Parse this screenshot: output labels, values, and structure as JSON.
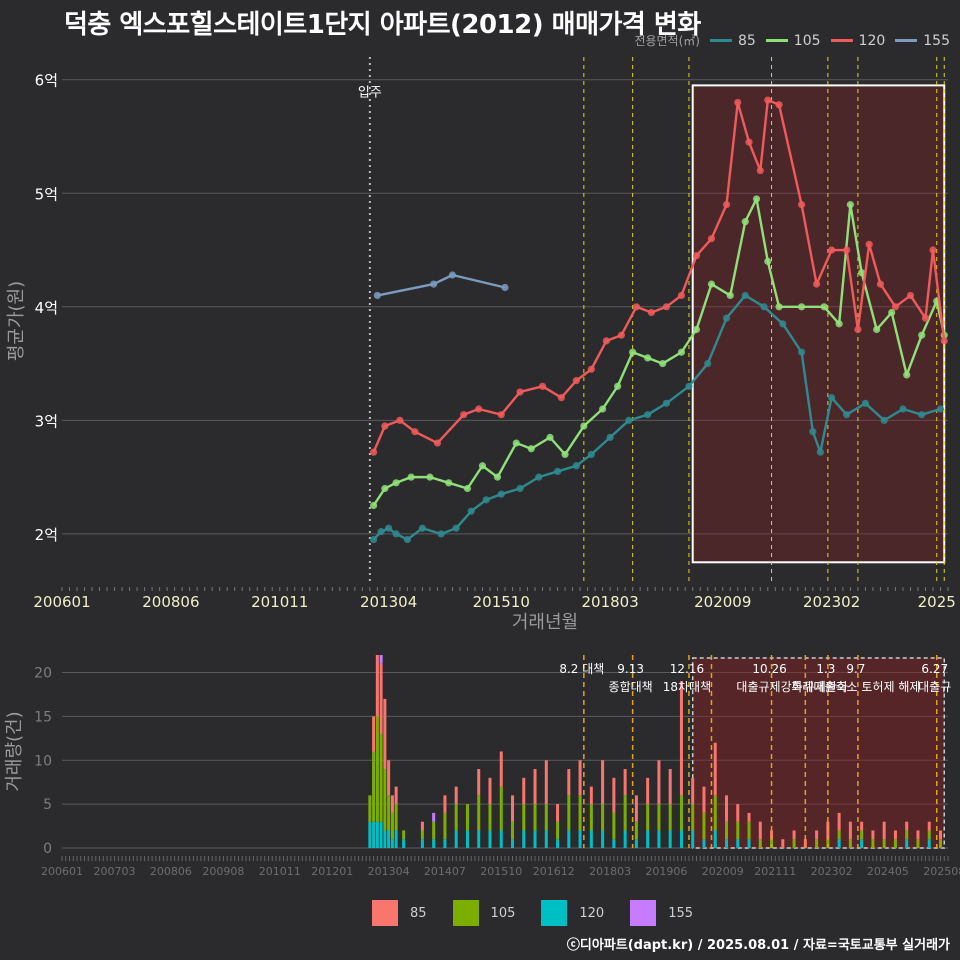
{
  "title": "덕충 엑스포힐스테이트1단지 아파트(2012) 매매가격 변화",
  "footer": "ⓒ디아파트(dapt.kr) / 2025.08.01 / 자료=국토교통부 실거래가",
  "legend_top": {
    "title": "전용면적(㎡)",
    "items": [
      {
        "label": "85",
        "color": "#2f8a8f"
      },
      {
        "label": "105",
        "color": "#90e07a"
      },
      {
        "label": "120",
        "color": "#f05a5a"
      },
      {
        "label": "155",
        "color": "#7b9cc0"
      }
    ]
  },
  "legend_bottom": {
    "items": [
      {
        "label": "85",
        "color": "#f8766d"
      },
      {
        "label": "105",
        "color": "#7cae00"
      },
      {
        "label": "120",
        "color": "#00bfc4"
      },
      {
        "label": "155",
        "color": "#c77cff"
      }
    ]
  },
  "chart_data": [
    {
      "type": "line",
      "xlabel": "거래년월",
      "ylabel": "평균가(원)",
      "ylim": [
        1.55,
        6.2
      ],
      "yticks": [
        2,
        3,
        4,
        5,
        6
      ],
      "ytick_labels": [
        "2억",
        "3억",
        "4억",
        "5억",
        "6억"
      ],
      "xtick_labels": [
        "200601",
        "200806",
        "201011",
        "201304",
        "201510",
        "201803",
        "202009",
        "202302",
        "2025"
      ],
      "xlim": [
        "2006-01",
        "2025-09"
      ],
      "move_in": {
        "date": "2012-11",
        "label": "입주"
      },
      "highlight_box": {
        "from": "2020-01",
        "to": "2025-08"
      },
      "policy_lines": [
        "2017-08",
        "2018-09",
        "2019-12",
        "2021-10",
        "2023-01",
        "2023-09",
        "2025-06",
        "2025-08"
      ],
      "series": [
        {
          "name": "85",
          "color": "#2f8a8f",
          "points": [
            [
              "2012-12",
              1.95
            ],
            [
              "2013-02",
              2.02
            ],
            [
              "2013-04",
              2.05
            ],
            [
              "2013-06",
              2.0
            ],
            [
              "2013-09",
              1.95
            ],
            [
              "2014-01",
              2.05
            ],
            [
              "2014-06",
              2.0
            ],
            [
              "2014-10",
              2.05
            ],
            [
              "2015-02",
              2.2
            ],
            [
              "2015-06",
              2.3
            ],
            [
              "2015-10",
              2.35
            ],
            [
              "2016-03",
              2.4
            ],
            [
              "2016-08",
              2.5
            ],
            [
              "2017-01",
              2.55
            ],
            [
              "2017-06",
              2.6
            ],
            [
              "2017-10",
              2.7
            ],
            [
              "2018-03",
              2.85
            ],
            [
              "2018-08",
              3.0
            ],
            [
              "2019-01",
              3.05
            ],
            [
              "2019-06",
              3.15
            ],
            [
              "2019-12",
              3.3
            ],
            [
              "2020-05",
              3.5
            ],
            [
              "2020-10",
              3.9
            ],
            [
              "2021-03",
              4.1
            ],
            [
              "2021-08",
              4.0
            ],
            [
              "2022-01",
              3.85
            ],
            [
              "2022-06",
              3.6
            ],
            [
              "2022-09",
              2.9
            ],
            [
              "2022-11",
              2.72
            ],
            [
              "2023-02",
              3.2
            ],
            [
              "2023-06",
              3.05
            ],
            [
              "2023-11",
              3.15
            ],
            [
              "2024-04",
              3.0
            ],
            [
              "2024-09",
              3.1
            ],
            [
              "2025-02",
              3.05
            ],
            [
              "2025-07",
              3.1
            ]
          ]
        },
        {
          "name": "105",
          "color": "#90e07a",
          "points": [
            [
              "2012-12",
              2.25
            ],
            [
              "2013-03",
              2.4
            ],
            [
              "2013-06",
              2.45
            ],
            [
              "2013-10",
              2.5
            ],
            [
              "2014-03",
              2.5
            ],
            [
              "2014-08",
              2.45
            ],
            [
              "2015-01",
              2.4
            ],
            [
              "2015-05",
              2.6
            ],
            [
              "2015-09",
              2.5
            ],
            [
              "2016-02",
              2.8
            ],
            [
              "2016-06",
              2.75
            ],
            [
              "2016-11",
              2.85
            ],
            [
              "2017-03",
              2.7
            ],
            [
              "2017-08",
              2.95
            ],
            [
              "2018-01",
              3.1
            ],
            [
              "2018-05",
              3.3
            ],
            [
              "2018-09",
              3.6
            ],
            [
              "2019-01",
              3.55
            ],
            [
              "2019-05",
              3.5
            ],
            [
              "2019-10",
              3.6
            ],
            [
              "2020-02",
              3.8
            ],
            [
              "2020-06",
              4.2
            ],
            [
              "2020-11",
              4.1
            ],
            [
              "2021-03",
              4.75
            ],
            [
              "2021-06",
              4.95
            ],
            [
              "2021-09",
              4.4
            ],
            [
              "2021-12",
              4.0
            ],
            [
              "2022-06",
              4.0
            ],
            [
              "2022-12",
              4.0
            ],
            [
              "2023-04",
              3.85
            ],
            [
              "2023-07",
              4.9
            ],
            [
              "2023-10",
              4.3
            ],
            [
              "2024-02",
              3.8
            ],
            [
              "2024-06",
              3.95
            ],
            [
              "2024-10",
              3.4
            ],
            [
              "2025-02",
              3.75
            ],
            [
              "2025-06",
              4.05
            ],
            [
              "2025-08",
              3.75
            ]
          ]
        },
        {
          "name": "120",
          "color": "#f05a5a",
          "points": [
            [
              "2012-12",
              2.72
            ],
            [
              "2013-03",
              2.95
            ],
            [
              "2013-07",
              3.0
            ],
            [
              "2013-11",
              2.9
            ],
            [
              "2014-05",
              2.8
            ],
            [
              "2014-12",
              3.05
            ],
            [
              "2015-04",
              3.1
            ],
            [
              "2015-10",
              3.05
            ],
            [
              "2016-03",
              3.25
            ],
            [
              "2016-09",
              3.3
            ],
            [
              "2017-02",
              3.2
            ],
            [
              "2017-06",
              3.35
            ],
            [
              "2017-10",
              3.45
            ],
            [
              "2018-02",
              3.7
            ],
            [
              "2018-06",
              3.75
            ],
            [
              "2018-10",
              4.0
            ],
            [
              "2019-02",
              3.95
            ],
            [
              "2019-06",
              4.0
            ],
            [
              "2019-10",
              4.1
            ],
            [
              "2020-02",
              4.45
            ],
            [
              "2020-06",
              4.6
            ],
            [
              "2020-10",
              4.9
            ],
            [
              "2021-01",
              5.8
            ],
            [
              "2021-04",
              5.45
            ],
            [
              "2021-07",
              5.2
            ],
            [
              "2021-09",
              5.82
            ],
            [
              "2021-12",
              5.78
            ],
            [
              "2022-06",
              4.9
            ],
            [
              "2022-10",
              4.2
            ],
            [
              "2023-02",
              4.5
            ],
            [
              "2023-06",
              4.5
            ],
            [
              "2023-09",
              3.8
            ],
            [
              "2023-12",
              4.55
            ],
            [
              "2024-03",
              4.2
            ],
            [
              "2024-07",
              4.0
            ],
            [
              "2024-11",
              4.1
            ],
            [
              "2025-03",
              3.9
            ],
            [
              "2025-05",
              4.5
            ],
            [
              "2025-08",
              3.7
            ]
          ]
        },
        {
          "name": "155",
          "color": "#7b9cc0",
          "points": [
            [
              "2013-01",
              4.1
            ],
            [
              "2014-04",
              4.2
            ],
            [
              "2014-09",
              4.28
            ],
            [
              "2015-11",
              4.17
            ]
          ]
        }
      ]
    },
    {
      "type": "bar",
      "xlabel": "",
      "ylabel": "거래량(건)",
      "ylim": [
        0,
        22
      ],
      "yticks": [
        0,
        5,
        10,
        15,
        20
      ],
      "ytick_labels": [
        "0",
        "5",
        "10",
        "15",
        "20"
      ],
      "xtick_labels": [
        "200601",
        "200703",
        "200806",
        "200908",
        "201011",
        "201201",
        "201304",
        "201407",
        "201510",
        "201612",
        "201803",
        "201906",
        "202009",
        "202111",
        "202302",
        "202405",
        "202508"
      ],
      "stacked": true,
      "series_names": [
        "85",
        "105",
        "120",
        "155"
      ],
      "monthly": [
        [
          "2012-11",
          6,
          3,
          3,
          0
        ],
        [
          "2012-12",
          15,
          8,
          3,
          0
        ],
        [
          "2013-01",
          22,
          12,
          3,
          0
        ],
        [
          "2013-02",
          22,
          10,
          3,
          1
        ],
        [
          "2013-03",
          17,
          7,
          2,
          0
        ],
        [
          "2013-04",
          10,
          4,
          2,
          0
        ],
        [
          "2013-05",
          6,
          3,
          1,
          0
        ],
        [
          "2013-06",
          7,
          3,
          2,
          0
        ],
        [
          "2013-08",
          2,
          1,
          1,
          0
        ],
        [
          "2014-01",
          3,
          1,
          1,
          0
        ],
        [
          "2014-04",
          4,
          2,
          1,
          1
        ],
        [
          "2014-07",
          6,
          3,
          1,
          0
        ],
        [
          "2014-10",
          7,
          3,
          2,
          0
        ],
        [
          "2015-01",
          5,
          3,
          2,
          0
        ],
        [
          "2015-04",
          9,
          4,
          2,
          0
        ],
        [
          "2015-07",
          8,
          3,
          2,
          0
        ],
        [
          "2015-10",
          11,
          5,
          2,
          0
        ],
        [
          "2016-01",
          6,
          2,
          1,
          0
        ],
        [
          "2016-04",
          8,
          3,
          2,
          0
        ],
        [
          "2016-07",
          9,
          3,
          2,
          0
        ],
        [
          "2016-10",
          10,
          3,
          2,
          0
        ],
        [
          "2017-01",
          5,
          2,
          1,
          0
        ],
        [
          "2017-04",
          9,
          4,
          2,
          0
        ],
        [
          "2017-07",
          10,
          4,
          2,
          0
        ],
        [
          "2017-10",
          7,
          3,
          2,
          0
        ],
        [
          "2018-01",
          10,
          3,
          2,
          0
        ],
        [
          "2018-04",
          8,
          3,
          1,
          0
        ],
        [
          "2018-07",
          9,
          4,
          2,
          0
        ],
        [
          "2018-10",
          6,
          2,
          1,
          0
        ],
        [
          "2019-01",
          8,
          3,
          2,
          0
        ],
        [
          "2019-04",
          10,
          3,
          2,
          0
        ],
        [
          "2019-07",
          9,
          3,
          2,
          0
        ],
        [
          "2019-10",
          19,
          4,
          2,
          0
        ],
        [
          "2020-01",
          8,
          3,
          2,
          0
        ],
        [
          "2020-04",
          7,
          3,
          1,
          0
        ],
        [
          "2020-07",
          12,
          4,
          2,
          0
        ],
        [
          "2020-10",
          6,
          2,
          1,
          0
        ],
        [
          "2021-01",
          5,
          2,
          1,
          0
        ],
        [
          "2021-04",
          4,
          2,
          1,
          0
        ],
        [
          "2021-07",
          3,
          1,
          0,
          0
        ],
        [
          "2021-10",
          2,
          1,
          0,
          0
        ],
        [
          "2022-01",
          1,
          0,
          0,
          0
        ],
        [
          "2022-04",
          2,
          1,
          0,
          0
        ],
        [
          "2022-07",
          1,
          0,
          0,
          0
        ],
        [
          "2022-10",
          2,
          1,
          0,
          0
        ],
        [
          "2023-01",
          3,
          1,
          0,
          0
        ],
        [
          "2023-04",
          4,
          1,
          1,
          0
        ],
        [
          "2023-07",
          3,
          1,
          0,
          0
        ],
        [
          "2023-10",
          3,
          1,
          1,
          0
        ],
        [
          "2024-01",
          2,
          1,
          0,
          0
        ],
        [
          "2024-04",
          3,
          1,
          0,
          0
        ],
        [
          "2024-07",
          2,
          1,
          0,
          0
        ],
        [
          "2024-10",
          3,
          1,
          1,
          0
        ],
        [
          "2025-01",
          2,
          1,
          0,
          0
        ],
        [
          "2025-04",
          3,
          1,
          1,
          0
        ],
        [
          "2025-07",
          2,
          1,
          0,
          0
        ]
      ],
      "highlight_box": {
        "from": "2020-01",
        "to": "2025-08"
      },
      "policy_events": [
        {
          "date": "2017-08",
          "label": "8.2 대책",
          "sublabel": ""
        },
        {
          "date": "2018-09",
          "label": "9.13",
          "sublabel": "종합대책"
        },
        {
          "date": "2019-12",
          "label": "12.16",
          "sublabel": "18차대책"
        },
        {
          "date": "2020-06",
          "label": "",
          "sublabel": ""
        },
        {
          "date": "2021-10",
          "label": "10.26",
          "sublabel": "대출규제강화"
        },
        {
          "date": "2022-07",
          "label": "",
          "sublabel": ""
        },
        {
          "date": "2023-01",
          "label": "1.3",
          "sublabel": "규제완화"
        },
        {
          "date": "2023-09",
          "label": "9.7",
          "sublabel": "특례대출축소 토허제 해제"
        },
        {
          "date": "2025-06",
          "label": "6.27",
          "sublabel": "대출규"
        }
      ]
    }
  ]
}
